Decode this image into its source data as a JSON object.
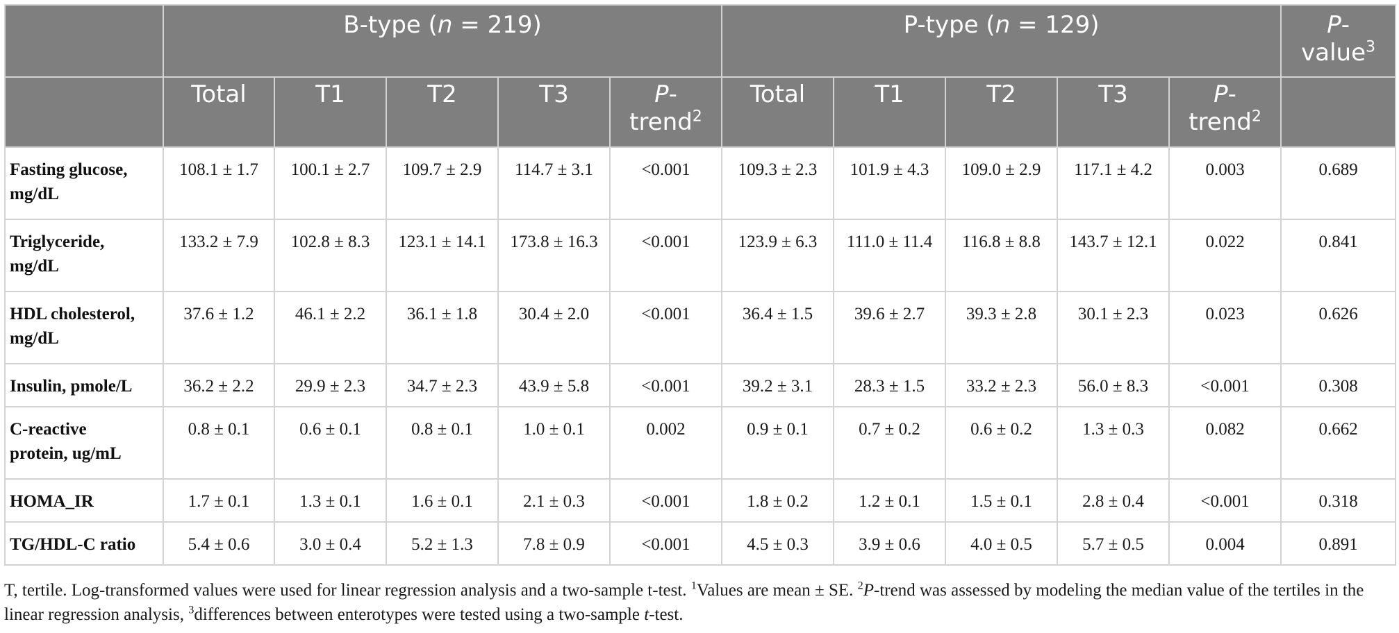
{
  "header": {
    "groups": [
      {
        "prefix": "B-type (",
        "n_label": "n",
        "suffix": " = 219)"
      },
      {
        "prefix": "P-type (",
        "n_label": "n",
        "suffix": " = 129)"
      }
    ],
    "pvalue": {
      "line1": "P",
      "line1_suffix": "-",
      "line2": "value",
      "sup": "3"
    },
    "subcols": [
      "Total",
      "T1",
      "T2",
      "T3"
    ],
    "ptrend": {
      "line1": "P",
      "line1_suffix": "-",
      "line2": "trend",
      "sup": "2"
    }
  },
  "rows": [
    {
      "label1": "Fasting glucose,",
      "label2": "mg/dL",
      "b": [
        "108.1 ± 1.7",
        "100.1 ± 2.7",
        "109.7 ± 2.9",
        "114.7 ± 3.1",
        "<0.001"
      ],
      "p": [
        "109.3 ± 2.3",
        "101.9 ± 4.3",
        "109.0 ± 2.9",
        "117.1 ± 4.2",
        "0.003"
      ],
      "pval": "0.689"
    },
    {
      "label1": "Triglyceride,",
      "label2": "mg/dL",
      "b": [
        "133.2 ± 7.9",
        "102.8 ± 8.3",
        "123.1 ± 14.1",
        "173.8 ± 16.3",
        "<0.001"
      ],
      "p": [
        "123.9 ± 6.3",
        "111.0 ± 11.4",
        "116.8 ± 8.8",
        "143.7 ± 12.1",
        "0.022"
      ],
      "pval": "0.841"
    },
    {
      "label1": "HDL cholesterol,",
      "label2": "mg/dL",
      "b": [
        "37.6 ± 1.2",
        "46.1 ± 2.2",
        "36.1 ± 1.8",
        "30.4 ± 2.0",
        "<0.001"
      ],
      "p": [
        "36.4 ± 1.5",
        "39.6 ± 2.7",
        "39.3 ± 2.8",
        "30.1 ± 2.3",
        "0.023"
      ],
      "pval": "0.626"
    },
    {
      "label1": "Insulin, pmole/L",
      "label2": "",
      "b": [
        "36.2 ± 2.2",
        "29.9 ± 2.3",
        "34.7 ± 2.3",
        "43.9 ± 5.8",
        "<0.001"
      ],
      "p": [
        "39.2 ± 3.1",
        "28.3 ± 1.5",
        "33.2 ± 2.3",
        "56.0 ± 8.3",
        "<0.001"
      ],
      "pval": "0.308"
    },
    {
      "label1": "C-reactive",
      "label2": "protein, ug/mL",
      "b": [
        "0.8 ± 0.1",
        "0.6 ± 0.1",
        "0.8 ± 0.1",
        "1.0 ± 0.1",
        "0.002"
      ],
      "p": [
        "0.9 ± 0.1",
        "0.7 ± 0.2",
        "0.6 ± 0.2",
        "1.3 ± 0.3",
        "0.082"
      ],
      "pval": "0.662"
    },
    {
      "label1": "HOMA_IR",
      "label2": "",
      "b": [
        "1.7 ± 0.1",
        "1.3 ± 0.1",
        "1.6 ± 0.1",
        "2.1 ± 0.3",
        "<0.001"
      ],
      "p": [
        "1.8 ± 0.2",
        "1.2 ± 0.1",
        "1.5 ± 0.1",
        "2.8 ± 0.4",
        "<0.001"
      ],
      "pval": "0.318"
    },
    {
      "label1": "TG/HDL-C ratio",
      "label2": "",
      "b": [
        "5.4 ± 0.6",
        "3.0 ± 0.4",
        "5.2 ± 1.3",
        "7.8 ± 0.9",
        "<0.001"
      ],
      "p": [
        "4.5 ± 0.3",
        "3.9 ± 0.6",
        "4.0 ± 0.5",
        "5.7 ± 0.5",
        "0.004"
      ],
      "pval": "0.891"
    }
  ],
  "footnote": {
    "t1": "T, tertile. Log-transformed values were used for linear regression analysis and a two-sample t-test. ",
    "s1": "1",
    "t2": "Values are mean ± SE. ",
    "s2": "2",
    "t3_italic": "P",
    "t3": "-trend was assessed by modeling the median value of the tertiles in the linear regression analysis, ",
    "s3": "3",
    "t4": "differences between enterotypes were tested using a two-sample ",
    "t4_italic": "t",
    "t5": "-test."
  },
  "colors": {
    "header_bg": "#7f7f7f",
    "header_text": "#ffffff",
    "grid": "#d3d3d3",
    "body_text": "#1a1a1a"
  }
}
